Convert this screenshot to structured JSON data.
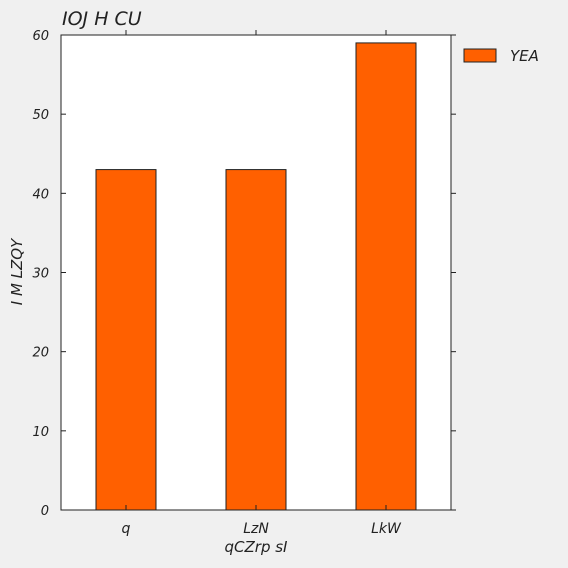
{
  "chart_data": {
    "type": "bar",
    "title": "IOJ   H CU",
    "xlabel": "qCZrp sI",
    "ylabel": "I  M  LZQY",
    "categories": [
      "q",
      "LzN",
      "LkW"
    ],
    "series": [
      {
        "name": "YEA",
        "values": [
          43,
          43,
          59
        ]
      }
    ],
    "ylim": [
      0,
      60
    ],
    "yticks": [
      0,
      10,
      20,
      30,
      40,
      50,
      60
    ],
    "grid": false,
    "legend_position": "outside-right-top",
    "colors": {
      "bar": "#ff6000",
      "background": "#f0f0f0",
      "plot_background": "#ffffff",
      "axis": "#222222"
    }
  }
}
